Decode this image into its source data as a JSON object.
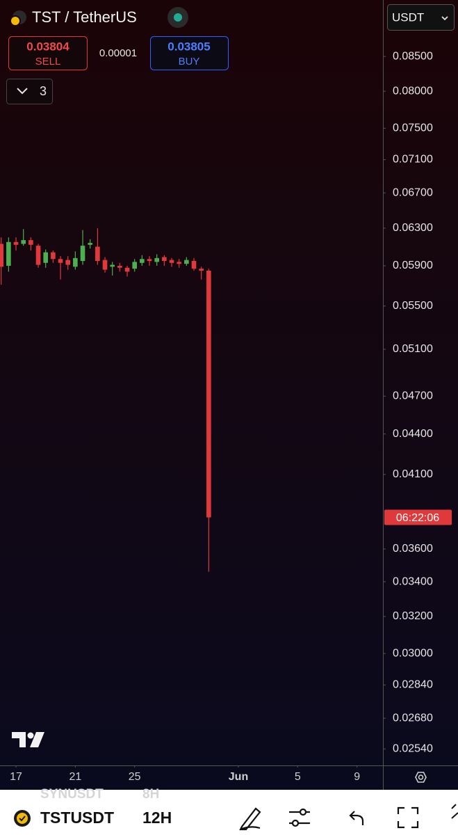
{
  "ui": {
    "symbol_title": "TST / TetherUS",
    "currency": "USDT",
    "sell_price": "0.03804",
    "sell_label": "SELL",
    "spread": "0.00001",
    "buy_price": "0.03805",
    "buy_label": "BUY",
    "indicators_count": "3",
    "faded_symbol": "SYNUSDT",
    "faded_interval": "8H",
    "bottom_symbol": "TSTUSDT",
    "bottom_interval": "12H"
  },
  "chart_data": {
    "type": "candlestick",
    "log_scale": true,
    "grid": false,
    "up_color": "#4caf50",
    "down_color": "#e0393b",
    "x": [
      0,
      1,
      2,
      3,
      4,
      5,
      6,
      7,
      8,
      9,
      10,
      11,
      12,
      13,
      14,
      15,
      16,
      17,
      18,
      19,
      20,
      21,
      22,
      23,
      24,
      25,
      26,
      27,
      28
    ],
    "open": [
      0.0613,
      0.059,
      0.0615,
      0.0613,
      0.0617,
      0.0611,
      0.0593,
      0.0604,
      0.0597,
      0.0596,
      0.0589,
      0.0595,
      0.0612,
      0.061,
      0.0596,
      0.0589,
      0.059,
      0.0588,
      0.0587,
      0.0593,
      0.0597,
      0.0594,
      0.0599,
      0.0596,
      0.0594,
      0.0592,
      0.0595,
      0.0587,
      0.0585
    ],
    "high": [
      0.062,
      0.062,
      0.062,
      0.0629,
      0.062,
      0.0613,
      0.0607,
      0.0606,
      0.06,
      0.06,
      0.0605,
      0.0628,
      0.0618,
      0.063,
      0.0599,
      0.0594,
      0.0593,
      0.059,
      0.0597,
      0.0601,
      0.06,
      0.0602,
      0.0601,
      0.0598,
      0.0597,
      0.0599,
      0.0598,
      0.0589,
      0.0587
    ],
    "low": [
      0.0571,
      0.0584,
      0.0606,
      0.0611,
      0.0606,
      0.0588,
      0.0588,
      0.0593,
      0.0576,
      0.0586,
      0.0586,
      0.0591,
      0.0608,
      0.0591,
      0.0583,
      0.058,
      0.0584,
      0.0579,
      0.0584,
      0.059,
      0.059,
      0.059,
      0.059,
      0.0589,
      0.0588,
      0.059,
      0.0585,
      0.0576,
      0.0346
    ],
    "close": [
      0.0589,
      0.0615,
      0.0612,
      0.0617,
      0.0612,
      0.0591,
      0.0604,
      0.0597,
      0.0593,
      0.0591,
      0.0598,
      0.0611,
      0.0614,
      0.0595,
      0.0586,
      0.0591,
      0.0588,
      0.0584,
      0.0594,
      0.0597,
      0.0595,
      0.0598,
      0.0595,
      0.0593,
      0.0592,
      0.0596,
      0.0587,
      0.0585,
      0.03804
    ],
    "countdown": "06:22:06",
    "xlim": [
      -0.16,
      51.5
    ],
    "xticks": [
      {
        "value": 2,
        "label": "17"
      },
      {
        "value": 10,
        "label": "21"
      },
      {
        "value": 18,
        "label": "25"
      },
      {
        "value": 32,
        "label": "Jun"
      },
      {
        "value": 40,
        "label": "5"
      },
      {
        "value": 48,
        "label": "9"
      }
    ],
    "ylim": [
      0.02468,
      0.0938
    ],
    "yticks": [
      {
        "value": 0.085,
        "label": "0.08500"
      },
      {
        "value": 0.08,
        "label": "0.08000"
      },
      {
        "value": 0.075,
        "label": "0.07500"
      },
      {
        "value": 0.071,
        "label": "0.07100"
      },
      {
        "value": 0.067,
        "label": "0.06700"
      },
      {
        "value": 0.063,
        "label": "0.06300"
      },
      {
        "value": 0.059,
        "label": "0.05900"
      },
      {
        "value": 0.055,
        "label": "0.05500"
      },
      {
        "value": 0.051,
        "label": "0.05100"
      },
      {
        "value": 0.047,
        "label": "0.04700"
      },
      {
        "value": 0.044,
        "label": "0.04400"
      },
      {
        "value": 0.041,
        "label": "0.04100"
      },
      {
        "value": 0.036,
        "label": "0.03600"
      },
      {
        "value": 0.034,
        "label": "0.03400"
      },
      {
        "value": 0.032,
        "label": "0.03200"
      },
      {
        "value": 0.03,
        "label": "0.03000"
      },
      {
        "value": 0.0284,
        "label": "0.02840"
      },
      {
        "value": 0.0268,
        "label": "0.02680"
      },
      {
        "value": 0.0254,
        "label": "0.02540"
      }
    ]
  }
}
